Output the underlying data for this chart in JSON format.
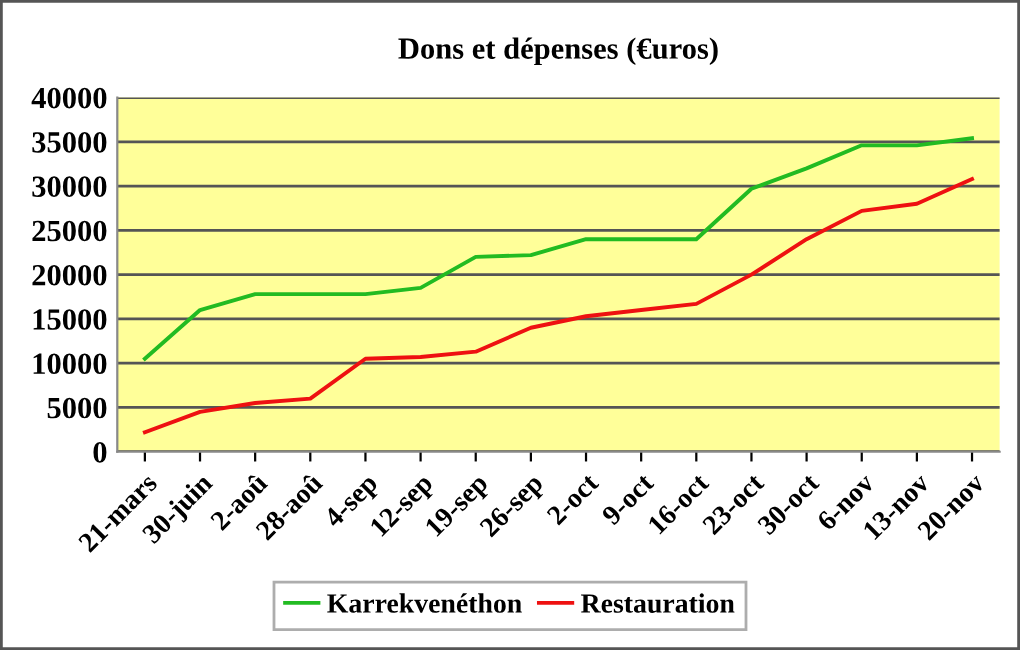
{
  "chart_data": {
    "type": "line",
    "title": "Dons et dépenses (€uros)",
    "categories": [
      "21-mars",
      "30-juin",
      "2-aoû",
      "28-aoû",
      "4-sep",
      "12-sep",
      "19-sep",
      "26-sep",
      "2-oct",
      "9-oct",
      "16-oct",
      "23-oct",
      "30-oct",
      "6-nov",
      "13-nov",
      "20-nov"
    ],
    "series": [
      {
        "name": "Karrekvenéthon",
        "color": "#22bb22",
        "values": [
          10500,
          16000,
          17800,
          17800,
          17800,
          18500,
          22000,
          22200,
          24000,
          24000,
          24000,
          29700,
          32000,
          34600,
          34600,
          35400
        ]
      },
      {
        "name": "Restauration",
        "color": "#ee1111",
        "values": [
          2200,
          4500,
          5500,
          6000,
          10500,
          10700,
          11300,
          14000,
          15300,
          16000,
          16700,
          20000,
          24000,
          27200,
          28000,
          30800
        ]
      }
    ],
    "ylim": [
      0,
      40000
    ],
    "yticks": [
      0,
      5000,
      10000,
      15000,
      20000,
      25000,
      30000,
      35000,
      40000
    ],
    "grid": "y",
    "legend": "bottom",
    "marker": "none",
    "line_style": "solid"
  }
}
